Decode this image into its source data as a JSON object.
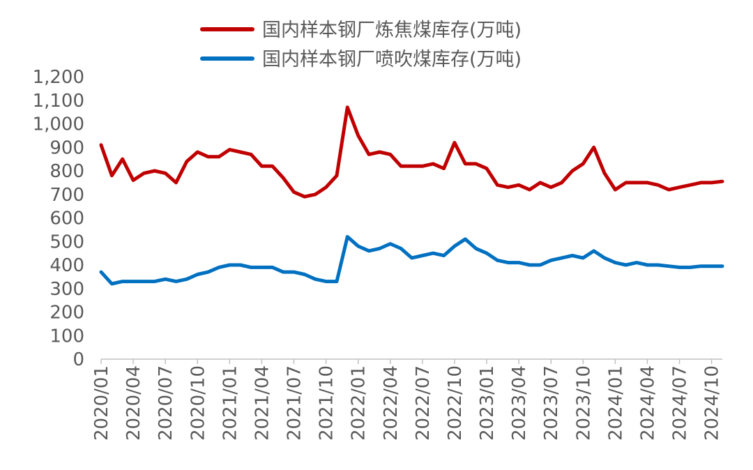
{
  "chart_data": {
    "type": "line",
    "title": "",
    "xlabel": "",
    "ylabel": "",
    "ylim": [
      0,
      1200
    ],
    "y_ticks": [
      "0",
      "100",
      "200",
      "300",
      "400",
      "500",
      "600",
      "700",
      "800",
      "900",
      "1,000",
      "1,100",
      "1,200"
    ],
    "x_ticks": [
      "2020/01",
      "2020/04",
      "2020/07",
      "2020/10",
      "2021/01",
      "2021/04",
      "2021/07",
      "2021/10",
      "2022/01",
      "2022/04",
      "2022/07",
      "2022/10",
      "2023/01",
      "2023/04",
      "2023/07",
      "2023/10",
      "2024/01",
      "2024/04",
      "2024/07",
      "2024/10"
    ],
    "grid": false,
    "legend_position": "top",
    "x": [
      "2020/01",
      "2020/02",
      "2020/03",
      "2020/04",
      "2020/05",
      "2020/06",
      "2020/07",
      "2020/08",
      "2020/09",
      "2020/10",
      "2020/11",
      "2020/12",
      "2021/01",
      "2021/02",
      "2021/03",
      "2021/04",
      "2021/05",
      "2021/06",
      "2021/07",
      "2021/08",
      "2021/09",
      "2021/10",
      "2021/11",
      "2021/12",
      "2022/01",
      "2022/02",
      "2022/03",
      "2022/04",
      "2022/05",
      "2022/06",
      "2022/07",
      "2022/08",
      "2022/09",
      "2022/10",
      "2022/11",
      "2022/12",
      "2023/01",
      "2023/02",
      "2023/03",
      "2023/04",
      "2023/05",
      "2023/06",
      "2023/07",
      "2023/08",
      "2023/09",
      "2023/10",
      "2023/11",
      "2023/12",
      "2024/01",
      "2024/02",
      "2024/03",
      "2024/04",
      "2024/05",
      "2024/06",
      "2024/07",
      "2024/08",
      "2024/09",
      "2024/10",
      "2024/11"
    ],
    "series": [
      {
        "name": "国内样本钢厂炼焦煤库存(万吨)",
        "color": "#C00000",
        "values": [
          910,
          780,
          850,
          760,
          790,
          800,
          790,
          750,
          840,
          880,
          860,
          860,
          890,
          880,
          870,
          820,
          820,
          770,
          710,
          690,
          700,
          730,
          780,
          1070,
          950,
          870,
          880,
          870,
          820,
          820,
          820,
          830,
          810,
          920,
          830,
          830,
          810,
          740,
          730,
          740,
          720,
          750,
          730,
          750,
          800,
          830,
          900,
          790,
          720,
          750,
          750,
          750,
          740,
          720,
          730,
          740,
          750,
          750,
          755
        ]
      },
      {
        "name": "国内样本钢厂喷吹煤库存(万吨)",
        "color": "#0070C0",
        "values": [
          370,
          320,
          330,
          330,
          330,
          330,
          340,
          330,
          340,
          360,
          370,
          390,
          400,
          400,
          390,
          390,
          390,
          370,
          370,
          360,
          340,
          330,
          330,
          520,
          480,
          460,
          470,
          490,
          470,
          430,
          440,
          450,
          440,
          480,
          510,
          470,
          450,
          420,
          410,
          410,
          400,
          400,
          420,
          430,
          440,
          430,
          460,
          430,
          410,
          400,
          410,
          400,
          400,
          395,
          390,
          390,
          395,
          395,
          395
        ]
      }
    ]
  }
}
